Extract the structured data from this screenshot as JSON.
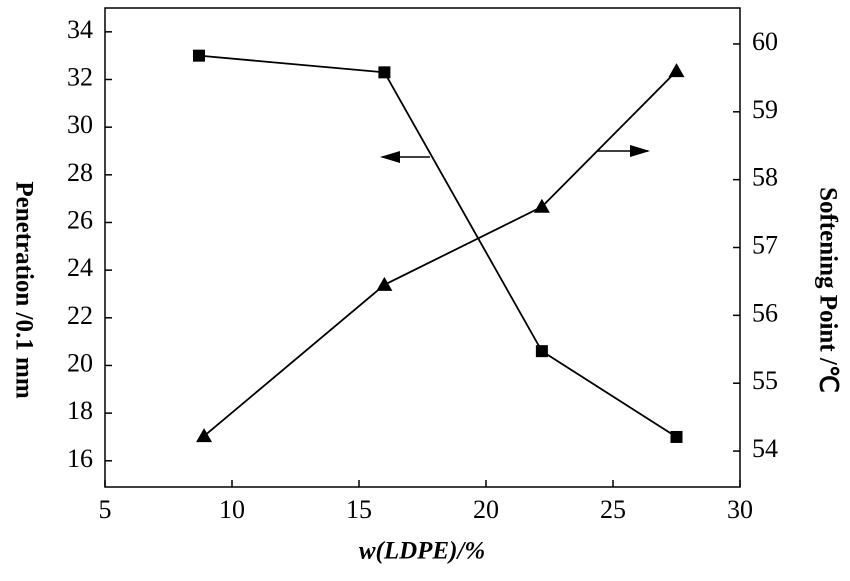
{
  "chart_data": {
    "type": "line",
    "x_label": "w(LDPE)/%",
    "y_label": "Penetration /0.1 mm",
    "y2_label": "Softening Point /℃",
    "xlim": [
      5,
      30
    ],
    "xticks": [
      5,
      10,
      15,
      20,
      25,
      30
    ],
    "ylim": [
      14.9,
      35
    ],
    "yticks": [
      16,
      18,
      20,
      22,
      24,
      26,
      28,
      30,
      32,
      34
    ],
    "y2lim": [
      53.47,
      60.53
    ],
    "y2ticks": [
      54,
      55,
      56,
      57,
      58,
      59,
      60
    ],
    "series": [
      {
        "color": "#000000",
        "marker": "square",
        "x": [
          8.7,
          16,
          22.2,
          27.5
        ],
        "values": [
          33,
          32.3,
          20.6,
          17
        ]
      },
      {
        "color": "#000000",
        "marker": "triangle",
        "axis": "y2",
        "x": [
          8.9,
          16,
          22.2,
          27.5
        ],
        "values": [
          54.22,
          56.45,
          57.6,
          59.6
        ]
      }
    ]
  }
}
